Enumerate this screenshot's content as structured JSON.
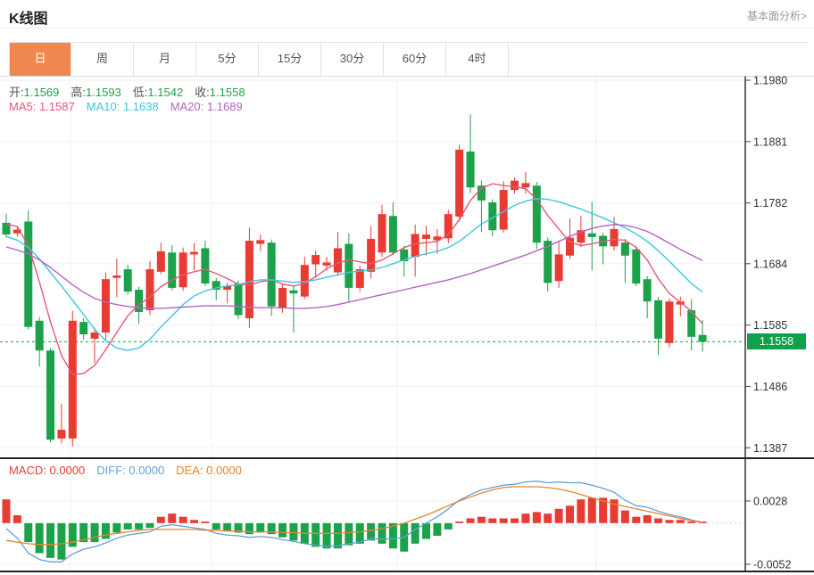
{
  "header": {
    "title": "K线图",
    "link": "基本面分析>"
  },
  "tabs": {
    "items": [
      "日",
      "周",
      "月",
      "5分",
      "15分",
      "30分",
      "60分",
      "4时"
    ],
    "selected_index": 0
  },
  "ohlc_legend": {
    "open_label": "开:",
    "open": "1.1569",
    "high_label": "高:",
    "high": "1.1593",
    "low_label": "低:",
    "low": "1.1542",
    "close_label": "收:",
    "close": "1.1558"
  },
  "ma_legend": {
    "ma5_label": "MA5:",
    "ma5": "1.1587",
    "ma10_label": "MA10:",
    "ma10": "1.1638",
    "ma20_label": "MA20:",
    "ma20": "1.1689"
  },
  "macd_legend": {
    "macd_label": "MACD:",
    "macd": "0.0000",
    "diff_label": "DIFF:",
    "diff": "0.0000",
    "dea_label": "DEA:",
    "dea": "0.0000"
  },
  "price_badge": {
    "value": "1.1558"
  },
  "colors": {
    "up": "#E83B33",
    "down": "#1CA24B",
    "value_green": "#21A24C",
    "ma5": "#EA5578",
    "ma10": "#3EC6DE",
    "ma20": "#B763C6",
    "diff": "#63A0D8",
    "dea": "#E8842C",
    "tab_active_bg": "#F0874F",
    "price_badge_bg": "#0FA24B",
    "current_price_line": "#21A24C"
  },
  "chart_data": {
    "type": "candlestick+macd",
    "title": "K线图 daily candlestick with MA5/MA10/MA20 and MACD sub-chart",
    "legend": [
      "MA5",
      "MA10",
      "MA20",
      "MACD",
      "DIFF",
      "DEA"
    ],
    "grid": true,
    "price_axis": {
      "ticks": [
        1.198,
        1.1881,
        1.1782,
        1.1684,
        1.1585,
        1.1486,
        1.1387
      ],
      "position": "right"
    },
    "macd_axis": {
      "ticks": [
        0.0028,
        -0.0052
      ],
      "zero_line": 0.0,
      "position": "right"
    },
    "current_price": 1.1558,
    "candles": [
      [
        1.175,
        1.1765,
        1.1726,
        1.1731
      ],
      [
        1.1733,
        1.1745,
        1.1728,
        1.1739
      ],
      [
        1.1752,
        1.177,
        1.1578,
        1.1582
      ],
      [
        1.1592,
        1.1598,
        1.1518,
        1.1544
      ],
      [
        1.1544,
        1.1548,
        1.1396,
        1.14
      ],
      [
        1.1402,
        1.1458,
        1.1394,
        1.1416
      ],
      [
        1.1402,
        1.1608,
        1.1389,
        1.1592
      ],
      [
        1.159,
        1.1596,
        1.1562,
        1.157
      ],
      [
        1.1563,
        1.1581,
        1.1524,
        1.1573
      ],
      [
        1.1573,
        1.167,
        1.156,
        1.1659
      ],
      [
        1.1661,
        1.1692,
        1.163,
        1.1665
      ],
      [
        1.1675,
        1.1682,
        1.1634,
        1.1639
      ],
      [
        1.1642,
        1.1647,
        1.1587,
        1.1606
      ],
      [
        1.1609,
        1.1688,
        1.1601,
        1.1675
      ],
      [
        1.1671,
        1.1718,
        1.1667,
        1.1704
      ],
      [
        1.1702,
        1.1714,
        1.1641,
        1.1645
      ],
      [
        1.1646,
        1.171,
        1.164,
        1.1702
      ],
      [
        1.1699,
        1.1717,
        1.1673,
        1.1703
      ],
      [
        1.1709,
        1.1721,
        1.1648,
        1.1652
      ],
      [
        1.1656,
        1.1661,
        1.1625,
        1.1642
      ],
      [
        1.1642,
        1.1653,
        1.162,
        1.1648
      ],
      [
        1.1652,
        1.1657,
        1.1595,
        1.1601
      ],
      [
        1.1596,
        1.1742,
        1.158,
        1.1721
      ],
      [
        1.1716,
        1.1731,
        1.1704,
        1.1722
      ],
      [
        1.1718,
        1.1723,
        1.16,
        1.1615
      ],
      [
        1.1612,
        1.1651,
        1.1605,
        1.1645
      ],
      [
        1.1641,
        1.1649,
        1.1573,
        1.1636
      ],
      [
        1.1631,
        1.1695,
        1.1627,
        1.1682
      ],
      [
        1.1683,
        1.1705,
        1.1661,
        1.1698
      ],
      [
        1.1681,
        1.1695,
        1.1673,
        1.1686
      ],
      [
        1.167,
        1.1735,
        1.1664,
        1.1709
      ],
      [
        1.1716,
        1.1733,
        1.1621,
        1.1645
      ],
      [
        1.1645,
        1.1681,
        1.1639,
        1.1675
      ],
      [
        1.1671,
        1.1745,
        1.166,
        1.1724
      ],
      [
        1.1702,
        1.1779,
        1.1695,
        1.1764
      ],
      [
        1.1761,
        1.1783,
        1.1698,
        1.1702
      ],
      [
        1.1707,
        1.1713,
        1.1663,
        1.1688
      ],
      [
        1.1695,
        1.1747,
        1.1663,
        1.1732
      ],
      [
        1.1724,
        1.1745,
        1.1697,
        1.1731
      ],
      [
        1.1722,
        1.174,
        1.17,
        1.1728
      ],
      [
        1.1725,
        1.1771,
        1.1717,
        1.1764
      ],
      [
        1.176,
        1.1876,
        1.1752,
        1.1868
      ],
      [
        1.1865,
        1.1925,
        1.1798,
        1.1807
      ],
      [
        1.181,
        1.1818,
        1.1735,
        1.1786
      ],
      [
        1.1783,
        1.1788,
        1.1728,
        1.1738
      ],
      [
        1.1739,
        1.1817,
        1.1734,
        1.1803
      ],
      [
        1.1803,
        1.1823,
        1.1797,
        1.1818
      ],
      [
        1.1807,
        1.1832,
        1.1797,
        1.1814
      ],
      [
        1.181,
        1.1816,
        1.1708,
        1.1718
      ],
      [
        1.1721,
        1.1726,
        1.1639,
        1.1653
      ],
      [
        1.1656,
        1.1721,
        1.1645,
        1.1699
      ],
      [
        1.1697,
        1.1757,
        1.1692,
        1.1726
      ],
      [
        1.1718,
        1.1761,
        1.1711,
        1.1738
      ],
      [
        1.1733,
        1.1784,
        1.1673,
        1.1727
      ],
      [
        1.1729,
        1.1734,
        1.1683,
        1.1712
      ],
      [
        1.1712,
        1.176,
        1.1705,
        1.174
      ],
      [
        1.1718,
        1.1724,
        1.1653,
        1.1697
      ],
      [
        1.1707,
        1.1712,
        1.1648,
        1.1652
      ],
      [
        1.1659,
        1.1664,
        1.1596,
        1.1623
      ],
      [
        1.1625,
        1.163,
        1.1537,
        1.1563
      ],
      [
        1.1556,
        1.1628,
        1.1549,
        1.1623
      ],
      [
        1.1618,
        1.1631,
        1.1599,
        1.1623
      ],
      [
        1.1609,
        1.1627,
        1.1544,
        1.1566
      ],
      [
        1.1569,
        1.1593,
        1.1542,
        1.1558
      ]
    ],
    "ma5": [
      1.1748,
      1.1744,
      1.1713,
      1.1655,
      1.159,
      1.1536,
      1.1505,
      1.1507,
      1.152,
      1.1545,
      1.1573,
      1.16,
      1.1618,
      1.163,
      1.1647,
      1.1658,
      1.1666,
      1.1671,
      1.1675,
      1.1668,
      1.166,
      1.1651,
      1.1649,
      1.1655,
      1.1658,
      1.1651,
      1.1648,
      1.1652,
      1.1663,
      1.1676,
      1.1685,
      1.169,
      1.1687,
      1.1684,
      1.169,
      1.17,
      1.171,
      1.1716,
      1.1718,
      1.172,
      1.1731,
      1.1755,
      1.1786,
      1.1806,
      1.1813,
      1.181,
      1.1808,
      1.1805,
      1.1788,
      1.1762,
      1.174,
      1.1719,
      1.1713,
      1.1716,
      1.172,
      1.1723,
      1.1722,
      1.171,
      1.169,
      1.166,
      1.1636,
      1.1622,
      1.1607,
      1.1587
    ],
    "ma10": [
      1.1728,
      1.1722,
      1.171,
      1.1692,
      1.167,
      1.1648,
      1.1625,
      1.1602,
      1.1578,
      1.156,
      1.1548,
      1.1544,
      1.1548,
      1.1562,
      1.1582,
      1.16,
      1.1618,
      1.1632,
      1.164,
      1.1645,
      1.1648,
      1.165,
      1.1655,
      1.1658,
      1.1658,
      1.1656,
      1.1654,
      1.1655,
      1.1658,
      1.1662,
      1.1666,
      1.167,
      1.1672,
      1.1674,
      1.1678,
      1.1684,
      1.169,
      1.1696,
      1.17,
      1.1704,
      1.171,
      1.172,
      1.1734,
      1.1748,
      1.1758,
      1.1768,
      1.1778,
      1.1785,
      1.1789,
      1.1788,
      1.1784,
      1.1778,
      1.1772,
      1.1765,
      1.1758,
      1.175,
      1.1742,
      1.1732,
      1.172,
      1.1705,
      1.1688,
      1.167,
      1.1652,
      1.1638
    ],
    "ma20": [
      1.1711,
      1.1706,
      1.17,
      1.169,
      1.1678,
      1.1664,
      1.165,
      1.1638,
      1.1628,
      1.1622,
      1.1618,
      1.1615,
      1.1613,
      1.1612,
      1.1612,
      1.1613,
      1.1614,
      1.1615,
      1.1616,
      1.1616,
      1.1616,
      1.1615,
      1.1614,
      1.1613,
      1.1613,
      1.1613,
      1.1612,
      1.1612,
      1.1613,
      1.1615,
      1.1618,
      1.1622,
      1.1626,
      1.163,
      1.1634,
      1.1638,
      1.1642,
      1.1646,
      1.165,
      1.1654,
      1.1658,
      1.1663,
      1.1668,
      1.1674,
      1.168,
      1.1686,
      1.1692,
      1.1698,
      1.1705,
      1.1712,
      1.172,
      1.1728,
      1.1735,
      1.1741,
      1.1745,
      1.1747,
      1.1746,
      1.1742,
      1.1736,
      1.1727,
      1.1717,
      1.1707,
      1.1698,
      1.1689
    ],
    "macd_hist": [
      0.003,
      0.001,
      -0.0024,
      -0.0038,
      -0.0044,
      -0.0046,
      -0.003,
      -0.0024,
      -0.0024,
      -0.002,
      -0.0012,
      -0.0008,
      -0.0008,
      -0.0006,
      0.0008,
      0.0012,
      0.0008,
      0.0004,
      0.0002,
      -0.0008,
      -0.001,
      -0.0012,
      -0.0014,
      -0.0012,
      -0.0014,
      -0.0018,
      -0.0022,
      -0.0026,
      -0.003,
      -0.0032,
      -0.0032,
      -0.0028,
      -0.0026,
      -0.0022,
      -0.0026,
      -0.0032,
      -0.0036,
      -0.0026,
      -0.002,
      -0.0016,
      -0.0008,
      0.0002,
      0.0006,
      0.0008,
      0.0006,
      0.0006,
      0.0006,
      0.0012,
      0.0014,
      0.0012,
      0.0018,
      0.0022,
      0.003,
      0.0032,
      0.0032,
      0.003,
      0.0016,
      0.0008,
      0.001,
      0.0006,
      0.0004,
      0.0004,
      0.0002,
      0.0
    ],
    "macd_diff": [
      -0.0007,
      -0.0019,
      -0.0038,
      -0.0046,
      -0.0049,
      -0.0049,
      -0.0039,
      -0.0033,
      -0.003,
      -0.0025,
      -0.0019,
      -0.0015,
      -0.0013,
      -0.0011,
      -0.0004,
      -0.0002,
      -0.0004,
      -0.0006,
      -0.0008,
      -0.0013,
      -0.0015,
      -0.0016,
      -0.0018,
      -0.0017,
      -0.0018,
      -0.0021,
      -0.0023,
      -0.0026,
      -0.0028,
      -0.0029,
      -0.0029,
      -0.0026,
      -0.0024,
      -0.002,
      -0.002,
      -0.002,
      -0.0018,
      -0.0008,
      0.0,
      0.0008,
      0.0018,
      0.0029,
      0.0036,
      0.0042,
      0.0045,
      0.0048,
      0.0049,
      0.0052,
      0.0053,
      0.0051,
      0.0052,
      0.0051,
      0.0051,
      0.0048,
      0.0044,
      0.0039,
      0.0029,
      0.0022,
      0.002,
      0.0015,
      0.0011,
      0.0008,
      0.0004,
      0.0001
    ],
    "macd_dea": [
      -0.0022,
      -0.0024,
      -0.0026,
      -0.0027,
      -0.0027,
      -0.0026,
      -0.0024,
      -0.0021,
      -0.0018,
      -0.0015,
      -0.0013,
      -0.0011,
      -0.0009,
      -0.0008,
      -0.0008,
      -0.0008,
      -0.0008,
      -0.0008,
      -0.0009,
      -0.0009,
      -0.001,
      -0.001,
      -0.0011,
      -0.0011,
      -0.0011,
      -0.0012,
      -0.0012,
      -0.0013,
      -0.0013,
      -0.0013,
      -0.0013,
      -0.0012,
      -0.0011,
      -0.0009,
      -0.0007,
      -0.0004,
      0.0,
      0.0005,
      0.001,
      0.0016,
      0.0022,
      0.0028,
      0.0033,
      0.0038,
      0.0042,
      0.0045,
      0.0046,
      0.0046,
      0.0046,
      0.0045,
      0.0043,
      0.004,
      0.0036,
      0.0032,
      0.0028,
      0.0024,
      0.0021,
      0.0018,
      0.0015,
      0.0012,
      0.0009,
      0.0006,
      0.0003,
      0.0001
    ]
  }
}
